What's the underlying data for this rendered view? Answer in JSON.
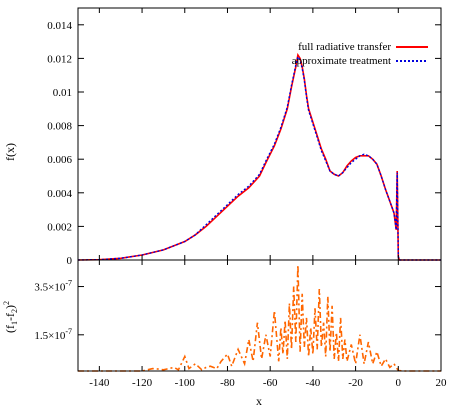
{
  "chart_data": [
    {
      "type": "line",
      "panel": "top",
      "ylabel": "f(x)",
      "xlim": [
        -150,
        20
      ],
      "ylim": [
        0,
        0.015
      ],
      "xticks": [
        -140,
        -120,
        -100,
        -80,
        -60,
        -40,
        -20,
        0,
        20
      ],
      "yticks": [
        {
          "value": 0,
          "label": "0"
        },
        {
          "value": 0.002,
          "label": "0.002"
        },
        {
          "value": 0.004,
          "label": "0.004"
        },
        {
          "value": 0.006,
          "label": "0.006"
        },
        {
          "value": 0.008,
          "label": "0.008"
        },
        {
          "value": 0.01,
          "label": "0.01"
        },
        {
          "value": 0.012,
          "label": "0.012"
        },
        {
          "value": 0.014,
          "label": "0.014"
        }
      ],
      "legend_position": "top-right",
      "x": [
        -150,
        -140,
        -130,
        -120,
        -110,
        -100,
        -95,
        -90,
        -85,
        -80,
        -75,
        -70,
        -65,
        -62,
        -58,
        -55,
        -52,
        -50,
        -48,
        -47,
        -46,
        -45,
        -44,
        -43,
        -42,
        -40,
        -38,
        -36,
        -34,
        -32,
        -30,
        -28,
        -26,
        -24,
        -22,
        -20,
        -18,
        -16,
        -14,
        -12,
        -10,
        -8,
        -6,
        -4,
        -2,
        -1,
        -0.5,
        0,
        0.5,
        1,
        2,
        5,
        10,
        20
      ],
      "series": [
        {
          "name": "full radiative transfer",
          "color": "#ff0000",
          "dash": "solid",
          "values": [
            0,
            2e-05,
            0.0001,
            0.0003,
            0.0006,
            0.0011,
            0.0015,
            0.002,
            0.0026,
            0.0032,
            0.0038,
            0.0043,
            0.005,
            0.0058,
            0.0068,
            0.0078,
            0.009,
            0.0103,
            0.0115,
            0.0122,
            0.012,
            0.0115,
            0.0108,
            0.0098,
            0.009,
            0.0082,
            0.0074,
            0.0066,
            0.006,
            0.0053,
            0.0051,
            0.005,
            0.0052,
            0.0056,
            0.0059,
            0.0061,
            0.0062,
            0.0062,
            0.0062,
            0.006,
            0.0057,
            0.005,
            0.0042,
            0.0035,
            0.0028,
            0.0018,
            0.0053,
            0.0002,
            0,
            0,
            0,
            0,
            0,
            0
          ]
        },
        {
          "name": "approximate treatment",
          "color": "#0000dd",
          "dash": "dotted",
          "values": [
            0,
            2e-05,
            0.0001,
            0.0003,
            0.0006,
            0.0011,
            0.0015,
            0.0021,
            0.0027,
            0.0033,
            0.0039,
            0.0044,
            0.0051,
            0.0059,
            0.0069,
            0.0079,
            0.0091,
            0.0104,
            0.0116,
            0.0121,
            0.0119,
            0.0114,
            0.0107,
            0.0097,
            0.0089,
            0.0081,
            0.0073,
            0.0065,
            0.0059,
            0.0053,
            0.0051,
            0.005,
            0.0052,
            0.0055,
            0.0058,
            0.006,
            0.0062,
            0.0063,
            0.0062,
            0.006,
            0.0057,
            0.005,
            0.0042,
            0.0035,
            0.0028,
            0.0018,
            0.0052,
            0.0002,
            0,
            0,
            0,
            0,
            0,
            0
          ]
        }
      ]
    },
    {
      "type": "line",
      "panel": "bottom",
      "xlabel": "x",
      "ylabel": "(f1-f2)2",
      "xlim": [
        -150,
        20
      ],
      "ylim": [
        0,
        4.6e-07
      ],
      "xticks": [
        -140,
        -120,
        -100,
        -80,
        -60,
        -40,
        -20,
        0,
        20
      ],
      "yticks": [
        {
          "value": 1.5e-07,
          "label": "1.5×10-7"
        },
        {
          "value": 3.5e-07,
          "label": "3.5×10-7"
        }
      ],
      "series": [
        {
          "color": "#ff6600",
          "dash": "dash-dot",
          "x": [
            -150,
            -140,
            -130,
            -120,
            -115,
            -112,
            -110,
            -105,
            -103,
            -100,
            -98,
            -95,
            -92,
            -90,
            -88,
            -85,
            -83,
            -80,
            -78,
            -75,
            -72,
            -70,
            -68,
            -66,
            -64,
            -62,
            -60,
            -58,
            -56,
            -55,
            -54,
            -53,
            -52,
            -51,
            -50,
            -49,
            -48,
            -47,
            -46,
            -45,
            -44,
            -43,
            -42,
            -41,
            -40,
            -39,
            -38,
            -37,
            -36,
            -35,
            -34,
            -33,
            -32,
            -31,
            -30,
            -29,
            -28,
            -27,
            -26,
            -25,
            -24,
            -22,
            -20,
            -18,
            -16,
            -14,
            -12,
            -10,
            -8,
            -6,
            -4,
            -2,
            0,
            2,
            5,
            10,
            20
          ],
          "values": [
            0,
            0,
            0,
            0,
            1e-08,
            8e-09,
            5e-09,
            1.5e-08,
            5e-09,
            6e-08,
            1e-08,
            3e-08,
            5e-09,
            1.5e-08,
            2e-08,
            1e-08,
            4e-08,
            7e-08,
            2e-08,
            9e-08,
            3e-08,
            1.3e-07,
            4e-08,
            2e-07,
            5e-08,
            1.5e-07,
            6e-08,
            2.5e-07,
            4e-08,
            1.8e-07,
            7e-08,
            2.1e-07,
            5e-08,
            2.8e-07,
            9e-08,
            3.5e-07,
            1.2e-07,
            4.4e-07,
            8e-08,
            3.2e-07,
            1e-07,
            2.2e-07,
            6e-08,
            1.8e-07,
            7e-08,
            2.6e-07,
            9e-08,
            3.4e-07,
            1e-07,
            2e-07,
            6e-08,
            3.1e-07,
            8e-08,
            2.7e-07,
            5e-08,
            1.6e-07,
            4e-08,
            2.2e-07,
            5e-08,
            1.3e-07,
            4e-08,
            1.1e-07,
            3e-08,
            1.5e-07,
            3e-08,
            1.2e-07,
            3e-08,
            8e-08,
            2e-08,
            5e-08,
            1.5e-08,
            3e-08,
            2e-09,
            0,
            0,
            0,
            0
          ]
        }
      ]
    }
  ]
}
